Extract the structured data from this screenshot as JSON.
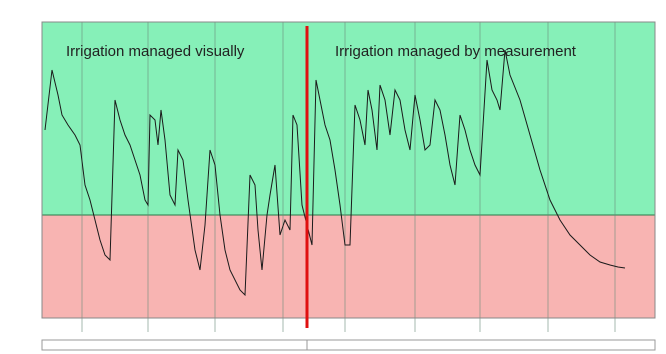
{
  "chart_data": {
    "type": "line",
    "annotations": [
      "Irrigation managed visually",
      "Irrigation managed by measurement"
    ],
    "x": [
      3,
      10,
      16,
      20,
      26,
      33,
      38,
      43,
      48,
      53,
      58,
      63,
      68,
      73,
      78,
      83,
      88,
      93,
      98,
      103,
      106,
      108,
      113,
      116,
      119,
      123,
      128,
      133,
      136,
      141,
      146,
      153,
      158,
      163,
      168,
      173,
      178,
      183,
      188,
      198,
      203,
      208,
      213,
      216,
      220,
      225,
      228,
      233,
      238,
      243,
      248,
      251,
      255,
      260,
      265,
      270,
      274,
      278,
      283,
      288,
      293,
      298,
      303,
      308,
      313,
      318,
      323,
      326,
      330,
      335,
      338,
      343,
      348,
      353,
      358,
      363,
      368,
      373,
      378,
      383,
      388,
      393,
      398,
      403,
      408,
      413,
      418,
      423,
      428,
      433,
      438,
      445,
      450,
      455,
      458,
      463,
      468,
      478,
      488,
      498,
      508,
      518,
      528,
      538,
      548,
      558,
      568,
      576,
      583
    ],
    "series": [
      {
        "color": "#1a1a1a",
        "values": [
          188,
          248,
          223,
          203,
          193,
          183,
          173,
          133,
          118,
          98,
          78,
          63,
          58,
          218,
          198,
          183,
          173,
          158,
          143,
          118,
          113,
          203,
          198,
          173,
          208,
          178,
          123,
          113,
          168,
          158,
          118,
          68,
          48,
          93,
          168,
          153,
          103,
          68,
          48,
          28,
          23,
          143,
          133,
          88,
          48,
          103,
          123,
          153,
          83,
          98,
          88,
          203,
          193,
          113,
          93,
          73,
          238,
          218,
          193,
          178,
          148,
          113,
          73,
          73,
          213,
          198,
          173,
          228,
          208,
          168,
          233,
          218,
          183,
          228,
          218,
          188,
          168,
          223,
          198,
          168,
          173,
          218,
          208,
          183,
          153,
          133,
          203,
          188,
          168,
          153,
          143,
          258,
          228,
          218,
          208,
          268,
          243,
          218,
          183,
          148,
          118,
          98,
          83,
          73,
          63,
          56,
          53,
          51,
          50
        ]
      }
    ],
    "xlim": [
      0,
      613
    ],
    "ylim": [
      0,
      296
    ],
    "xticks": [
      40,
      106,
      173,
      241,
      303,
      373,
      438,
      506,
      573
    ],
    "threshold": 103,
    "threshold_colors": {
      "above": "#86f0b8",
      "below": "#f8b4b2"
    },
    "divider": {
      "x": 265,
      "color": "#e01010"
    },
    "grid": true
  }
}
